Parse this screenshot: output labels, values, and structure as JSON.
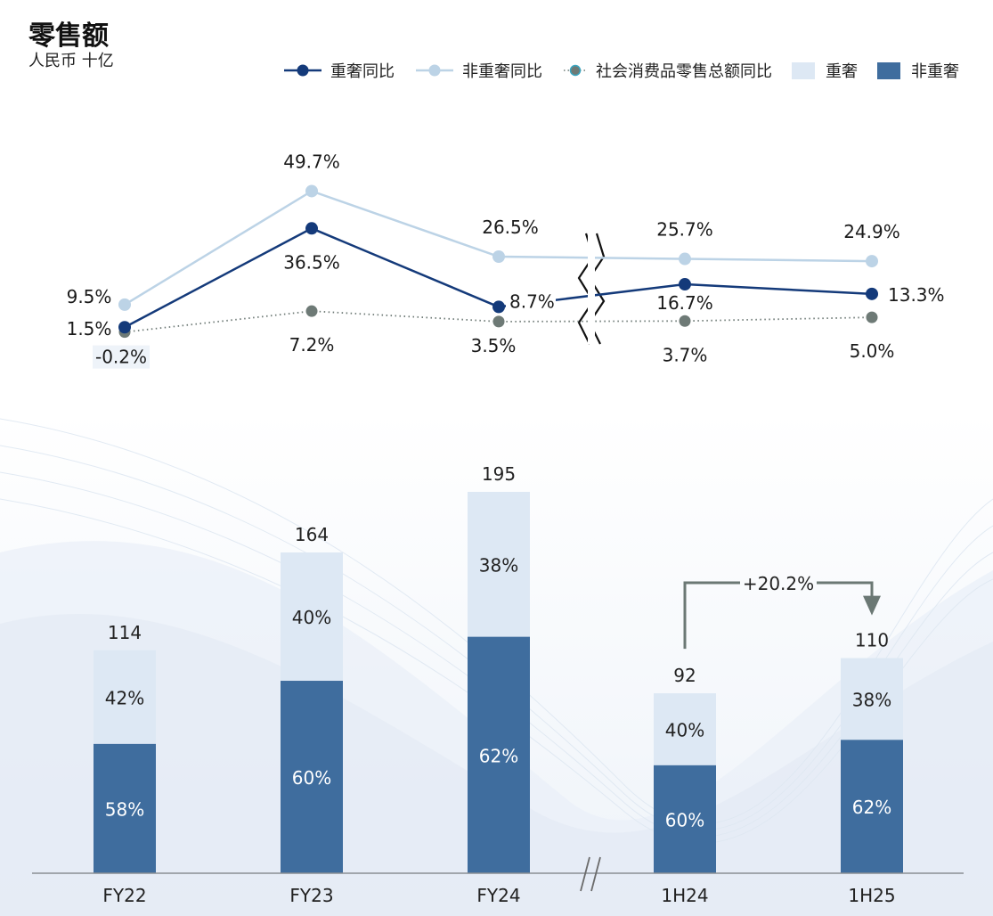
{
  "title": "零售额",
  "unit": "人民币 十亿",
  "colors": {
    "luxury_line": "#143a7a",
    "nonluxury_line": "#bcd3e6",
    "total_line": "#6e7a76",
    "total_line_stroke": "#3aa6c0",
    "luxury_bar": "#dde8f4",
    "nonluxury_bar": "#3f6d9e",
    "growth_arrow": "#6b7874"
  },
  "legend": [
    {
      "key": "luxury_yoy",
      "label": "重奢同比",
      "type": "line-marker",
      "color": "#143a7a"
    },
    {
      "key": "nonluxury_yoy",
      "label": "非重奢同比",
      "type": "line-marker",
      "color": "#bcd3e6"
    },
    {
      "key": "total_yoy",
      "label": "社会消费品零售总额同比",
      "type": "dotted-marker",
      "color": "#6e7a76"
    },
    {
      "key": "luxury",
      "label": "重奢",
      "type": "swatch",
      "color": "#dde8f4"
    },
    {
      "key": "nonluxury",
      "label": "非重奢",
      "type": "swatch",
      "color": "#3f6d9e"
    }
  ],
  "chart_data": [
    {
      "type": "line",
      "categories": [
        "FY22",
        "FY23",
        "FY24",
        "1H24",
        "1H25"
      ],
      "axis_break_between": [
        "FY24",
        "1H24"
      ],
      "series": [
        {
          "name": "重奢同比",
          "values": [
            1.5,
            36.5,
            8.7,
            16.7,
            13.3
          ],
          "labels": [
            "1.5%",
            "36.5%",
            "8.7%",
            "16.7%",
            "13.3%"
          ]
        },
        {
          "name": "非重奢同比",
          "values": [
            9.5,
            49.7,
            26.5,
            25.7,
            24.9
          ],
          "labels": [
            "9.5%",
            "49.7%",
            "26.5%",
            "25.7%",
            "24.9%"
          ]
        },
        {
          "name": "社会消费品零售总额同比",
          "values": [
            -0.2,
            7.2,
            3.5,
            3.7,
            5.0
          ],
          "labels": [
            "-0.2%",
            "7.2%",
            "3.5%",
            "3.7%",
            "5.0%"
          ]
        }
      ],
      "grid": false
    },
    {
      "type": "bar",
      "stacked": true,
      "categories": [
        "FY22",
        "FY23",
        "FY24",
        "1H24",
        "1H25"
      ],
      "totals": [
        114,
        164,
        195,
        92,
        110
      ],
      "total_labels": [
        "114",
        "164",
        "195",
        "92",
        "110"
      ],
      "series": [
        {
          "name": "非重奢",
          "share_labels": [
            "58%",
            "60%",
            "62%",
            "60%",
            "62%"
          ],
          "shares": [
            58,
            60,
            62,
            60,
            62
          ]
        },
        {
          "name": "重奢",
          "share_labels": [
            "42%",
            "40%",
            "38%",
            "40%",
            "38%"
          ],
          "shares": [
            42,
            40,
            38,
            40,
            38
          ]
        }
      ],
      "axis_break_between": [
        "FY24",
        "1H24"
      ],
      "annotation": {
        "from": "1H24",
        "to": "1H25",
        "label": "+20.2%"
      },
      "grid": false
    }
  ]
}
